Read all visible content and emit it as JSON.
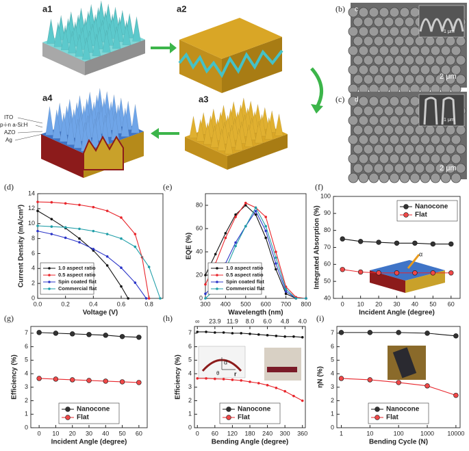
{
  "figure": {
    "schematic_labels": [
      "a1",
      "a2",
      "a3",
      "a4"
    ],
    "layers": [
      "ITO",
      "p-i-n a-Si:H",
      "AZO",
      "Ag"
    ],
    "sem": [
      {
        "panel": "(b)",
        "label": "c",
        "inset_scale": "1 μm",
        "scale": "2 μm"
      },
      {
        "panel": "(c)",
        "label": "d",
        "inset_scale": "1 μm",
        "scale": "2 μm"
      }
    ],
    "inset_f": "α",
    "inset_h": [
      "d",
      "θ",
      "r"
    ]
  },
  "chart_data": [
    {
      "type": "line",
      "title": "(d)",
      "xlabel": "Voltage (V)",
      "ylabel": "Current Density (mA/cm²)",
      "xlim": [
        0,
        0.9
      ],
      "ylim": [
        0,
        14
      ],
      "xticks": [
        {
          "value": 0,
          "label": "0.0"
        },
        0.2,
        0.4,
        0.6,
        0.8
      ],
      "yticks": [
        0,
        2,
        4,
        6,
        8,
        10,
        12,
        14
      ],
      "legend": "lower left",
      "series": [
        {
          "name": "1.0 aspect ratio",
          "color": "#111111",
          "x": [
            0,
            0.1,
            0.2,
            0.3,
            0.4,
            0.5,
            0.6,
            0.65
          ],
          "values": [
            11.7,
            10.6,
            9.4,
            8.0,
            6.4,
            4.4,
            1.6,
            0
          ]
        },
        {
          "name": "0.5 aspect ratio",
          "color": "#e8252b",
          "x": [
            0,
            0.1,
            0.2,
            0.3,
            0.4,
            0.5,
            0.6,
            0.7,
            0.75,
            0.8
          ],
          "values": [
            12.9,
            12.85,
            12.7,
            12.5,
            12.2,
            11.7,
            10.8,
            8.6,
            5.5,
            0
          ]
        },
        {
          "name": "Spin coated flat",
          "color": "#2b35c8",
          "x": [
            0,
            0.1,
            0.2,
            0.3,
            0.4,
            0.5,
            0.6,
            0.7,
            0.78
          ],
          "values": [
            9.0,
            8.6,
            8.1,
            7.5,
            6.6,
            5.6,
            4.1,
            2.1,
            0
          ]
        },
        {
          "name": "Commercial flat",
          "color": "#1f9ea8",
          "x": [
            0,
            0.1,
            0.2,
            0.3,
            0.4,
            0.5,
            0.6,
            0.7,
            0.8,
            0.88
          ],
          "values": [
            9.7,
            9.6,
            9.5,
            9.3,
            9.0,
            8.6,
            8.0,
            6.9,
            4.2,
            0
          ]
        }
      ]
    },
    {
      "type": "line",
      "title": "(e)",
      "xlabel": "Wavelength (nm)",
      "ylabel": "EQE (%)",
      "xlim": [
        300,
        800
      ],
      "ylim": [
        0,
        90
      ],
      "xticks": [
        300,
        400,
        500,
        600,
        700,
        800
      ],
      "yticks": [
        0,
        20,
        40,
        60,
        80
      ],
      "legend": "lower left",
      "x": [
        300,
        350,
        400,
        450,
        500,
        550,
        600,
        650,
        700,
        750,
        800
      ],
      "series": [
        {
          "name": "1.0 aspect ratio",
          "color": "#111111",
          "values": [
            20,
            38,
            56,
            72,
            80,
            72,
            52,
            25,
            4,
            0,
            0
          ]
        },
        {
          "name": "0.5 aspect ratio",
          "color": "#e8252b",
          "values": [
            12,
            30,
            52,
            70,
            82,
            78,
            70,
            40,
            10,
            1,
            0
          ]
        },
        {
          "name": "Spin coated flat",
          "color": "#2b35c8",
          "values": [
            4,
            12,
            30,
            48,
            62,
            75,
            58,
            30,
            6,
            0,
            0
          ]
        },
        {
          "name": "Commercial flat",
          "color": "#1f9ea8",
          "values": [
            0,
            8,
            25,
            45,
            62,
            78,
            62,
            35,
            8,
            0,
            0
          ]
        }
      ]
    },
    {
      "type": "line",
      "title": "(f)",
      "xlabel": "Incident Angle (degree)",
      "ylabel": "Integrated Absorption (%)",
      "xlim": [
        -5,
        65
      ],
      "ylim": [
        40,
        100
      ],
      "xticks": [
        0,
        10,
        20,
        30,
        40,
        50,
        60
      ],
      "yticks": [
        40,
        50,
        60,
        70,
        80,
        90,
        100
      ],
      "legend": "upper right",
      "x": [
        0,
        10,
        20,
        30,
        40,
        50,
        60
      ],
      "series": [
        {
          "name": "Nanocone",
          "color": "#111111",
          "values": [
            75,
            73.5,
            73,
            72.5,
            72.5,
            72,
            72
          ]
        },
        {
          "name": "Flat",
          "color": "#e8252b",
          "values": [
            57,
            55.5,
            55,
            55,
            55,
            55,
            55
          ]
        }
      ]
    },
    {
      "type": "line",
      "title": "(g)",
      "xlabel": "Incident Angle (degree)",
      "ylabel": "Efficiency (%)",
      "xlim": [
        -5,
        65
      ],
      "ylim": [
        0,
        7.5
      ],
      "xticks": [
        0,
        10,
        20,
        30,
        40,
        50,
        60
      ],
      "yticks": [
        0,
        1,
        2,
        3,
        4,
        5,
        6,
        7
      ],
      "legend": "lower center",
      "x": [
        0,
        10,
        20,
        30,
        40,
        50,
        60
      ],
      "series": [
        {
          "name": "Nanocone",
          "color": "#111111",
          "values": [
            7.05,
            7.0,
            6.95,
            6.9,
            6.85,
            6.75,
            6.7
          ]
        },
        {
          "name": "Flat",
          "color": "#e8252b",
          "values": [
            3.65,
            3.6,
            3.55,
            3.5,
            3.45,
            3.4,
            3.35
          ]
        }
      ]
    },
    {
      "type": "line",
      "title": "(h)",
      "xlabel": "Bending Angle (degree)",
      "ylabel": "Efficiency (%)",
      "xlim": [
        -10,
        370
      ],
      "ylim": [
        0,
        7.5
      ],
      "xticks": [
        0,
        60,
        120,
        180,
        240,
        300,
        360
      ],
      "yticks": [
        0,
        1,
        2,
        3,
        4,
        5,
        6,
        7
      ],
      "x2ticks": [
        {
          "value": 0,
          "label": "∞"
        },
        {
          "value": 60,
          "label": "23.9"
        },
        {
          "value": 120,
          "label": "11.9"
        },
        {
          "value": 180,
          "label": "8.0"
        },
        {
          "value": 240,
          "label": "6.0"
        },
        {
          "value": 300,
          "label": "4.8"
        },
        {
          "value": 360,
          "label": "4.0"
        }
      ],
      "legend": "lower center",
      "x": [
        0,
        30,
        60,
        90,
        120,
        150,
        180,
        210,
        240,
        270,
        300,
        330,
        360
      ],
      "series": [
        {
          "name": "Nanocone",
          "color": "#111111",
          "values": [
            7.1,
            7.1,
            7.05,
            7.05,
            7.0,
            7.0,
            6.95,
            6.9,
            6.85,
            6.8,
            6.75,
            6.75,
            6.7
          ]
        },
        {
          "name": "Flat",
          "color": "#e8252b",
          "values": [
            3.65,
            3.65,
            3.62,
            3.6,
            3.55,
            3.5,
            3.4,
            3.3,
            3.15,
            2.95,
            2.7,
            2.35,
            2.0
          ]
        }
      ]
    },
    {
      "type": "line",
      "title": "(i)",
      "xlabel": "Bending Cycle (N)",
      "ylabel": "ηN (%)",
      "xlim": [
        0.7,
        14000
      ],
      "ylim": [
        0,
        7.5
      ],
      "xscale": "log",
      "xticks": [
        1,
        10,
        100,
        1000,
        10000
      ],
      "yticks": [
        0,
        1,
        2,
        3,
        4,
        5,
        6,
        7
      ],
      "legend": "lower center",
      "x": [
        1,
        10,
        100,
        1000,
        10000
      ],
      "series": [
        {
          "name": "Nanocone",
          "color": "#111111",
          "values": [
            7.05,
            7.05,
            7.05,
            7.0,
            6.8
          ]
        },
        {
          "name": "Flat",
          "color": "#e8252b",
          "values": [
            3.65,
            3.55,
            3.35,
            3.1,
            2.4
          ]
        }
      ]
    }
  ]
}
